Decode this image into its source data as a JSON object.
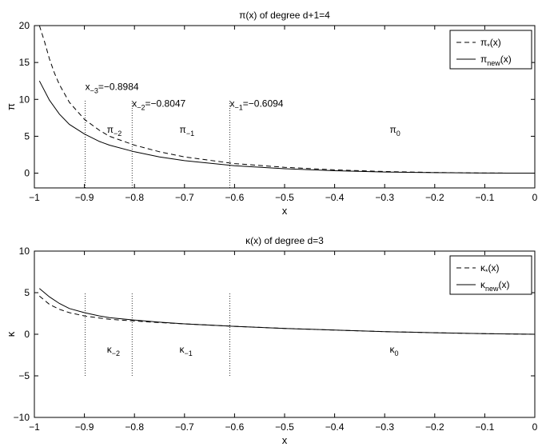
{
  "chart_data": [
    {
      "type": "line",
      "title": "π(x) of degree d+1=4",
      "xlabel": "x",
      "ylabel": "π",
      "xlim": [
        -1,
        0
      ],
      "ylim": [
        -2,
        20
      ],
      "xticks": [
        -1,
        -0.9,
        -0.8,
        -0.7,
        -0.6,
        -0.5,
        -0.4,
        -0.3,
        -0.2,
        -0.1,
        0
      ],
      "xtick_labels": [
        "−1",
        "−0.9",
        "−0.8",
        "−0.7",
        "−0.6",
        "−0.5",
        "−0.4",
        "−0.3",
        "−0.2",
        "−0.1",
        "0"
      ],
      "yticks": [
        0,
        5,
        10,
        15,
        20
      ],
      "ytick_labels": [
        "0",
        "5",
        "10",
        "15",
        "20"
      ],
      "grid": false,
      "legend_position": "top-right",
      "series": [
        {
          "name_main": "π",
          "name_sub": "*",
          "name_suffix": "(x)",
          "style": "dashed",
          "x": [
            -0.99,
            -0.98,
            -0.97,
            -0.96,
            -0.95,
            -0.93,
            -0.9,
            -0.87,
            -0.85,
            -0.8,
            -0.75,
            -0.7,
            -0.6,
            -0.5,
            -0.4,
            -0.3,
            -0.2,
            -0.1,
            0
          ],
          "y": [
            20,
            17.9,
            15.5,
            13.6,
            12.0,
            9.6,
            7.3,
            5.8,
            5.0,
            3.8,
            2.9,
            2.2,
            1.3,
            0.8,
            0.45,
            0.22,
            0.09,
            0.02,
            0
          ]
        },
        {
          "name_main": "π",
          "name_sub": "new",
          "name_suffix": "(x)",
          "style": "solid",
          "x": [
            -0.99,
            -0.97,
            -0.95,
            -0.93,
            -0.9,
            -0.87,
            -0.85,
            -0.8,
            -0.75,
            -0.7,
            -0.6,
            -0.5,
            -0.4,
            -0.3,
            -0.2,
            -0.1,
            0
          ],
          "y": [
            12.5,
            9.9,
            8.0,
            6.6,
            5.3,
            4.3,
            3.8,
            2.9,
            2.2,
            1.7,
            1.0,
            0.6,
            0.33,
            0.16,
            0.07,
            0.02,
            0
          ]
        }
      ],
      "vlines": [
        {
          "x": -0.8984,
          "from": -2,
          "to": 10
        },
        {
          "x": -0.8047,
          "from": -2,
          "to": 10
        },
        {
          "x": -0.6094,
          "from": -2,
          "to": 10
        }
      ],
      "annotations": [
        {
          "main": "x",
          "sub": "−3",
          "rest": "=−0.8984",
          "x": -0.8984,
          "y": 11.3
        },
        {
          "main": "x",
          "sub": "−2",
          "rest": "=−0.8047",
          "x": -0.8047,
          "y": 9.0
        },
        {
          "main": "x",
          "sub": "−1",
          "rest": "=−0.6094",
          "x": -0.6094,
          "y": 9.0
        },
        {
          "main": "π",
          "sub": "−2",
          "rest": "",
          "x": -0.855,
          "y": 5.5
        },
        {
          "main": "π",
          "sub": "−1",
          "rest": "",
          "x": -0.71,
          "y": 5.5
        },
        {
          "main": "π",
          "sub": "0",
          "rest": "",
          "x": -0.29,
          "y": 5.5
        }
      ]
    },
    {
      "type": "line",
      "title": "κ(x) of degree d=3",
      "xlabel": "x",
      "ylabel": "κ",
      "xlim": [
        -1,
        0
      ],
      "ylim": [
        -10,
        10
      ],
      "xticks": [
        -1,
        -0.9,
        -0.8,
        -0.7,
        -0.6,
        -0.5,
        -0.4,
        -0.3,
        -0.2,
        -0.1,
        0
      ],
      "xtick_labels": [
        "−1",
        "−0.9",
        "−0.8",
        "−0.7",
        "−0.6",
        "−0.5",
        "−0.4",
        "−0.3",
        "−0.2",
        "−0.1",
        "0"
      ],
      "yticks": [
        -10,
        -5,
        0,
        5,
        10
      ],
      "ytick_labels": [
        "−10",
        "−5",
        "0",
        "5",
        "10"
      ],
      "grid": false,
      "legend_position": "top-right",
      "series": [
        {
          "name_main": "κ",
          "name_sub": "*",
          "name_suffix": "(x)",
          "style": "dashed",
          "x": [
            -0.99,
            -0.97,
            -0.95,
            -0.93,
            -0.9,
            -0.87,
            -0.85,
            -0.8,
            -0.75,
            -0.7,
            -0.6,
            -0.5,
            -0.4,
            -0.3,
            -0.2,
            -0.1,
            0
          ],
          "y": [
            4.6,
            3.6,
            3.0,
            2.6,
            2.2,
            1.95,
            1.8,
            1.6,
            1.4,
            1.25,
            0.95,
            0.7,
            0.5,
            0.32,
            0.18,
            0.07,
            0
          ]
        },
        {
          "name_main": "κ",
          "name_sub": "new",
          "name_suffix": "(x)",
          "style": "solid",
          "x": [
            -0.99,
            -0.97,
            -0.95,
            -0.93,
            -0.9,
            -0.87,
            -0.85,
            -0.8,
            -0.75,
            -0.7,
            -0.6,
            -0.5,
            -0.4,
            -0.3,
            -0.2,
            -0.1,
            0
          ],
          "y": [
            5.5,
            4.5,
            3.7,
            3.1,
            2.6,
            2.2,
            2.0,
            1.7,
            1.45,
            1.25,
            0.95,
            0.7,
            0.5,
            0.32,
            0.18,
            0.07,
            0
          ]
        }
      ],
      "vlines": [
        {
          "x": -0.8984,
          "from": -5,
          "to": 5
        },
        {
          "x": -0.8047,
          "from": -5,
          "to": 5
        },
        {
          "x": -0.6094,
          "from": -5,
          "to": 5
        }
      ],
      "annotations": [
        {
          "main": "κ",
          "sub": "−2",
          "rest": "",
          "x": -0.855,
          "y": -2.2
        },
        {
          "main": "κ",
          "sub": "−1",
          "rest": "",
          "x": -0.71,
          "y": -2.2
        },
        {
          "main": "κ",
          "sub": "0",
          "rest": "",
          "x": -0.29,
          "y": -2.2
        }
      ]
    }
  ]
}
